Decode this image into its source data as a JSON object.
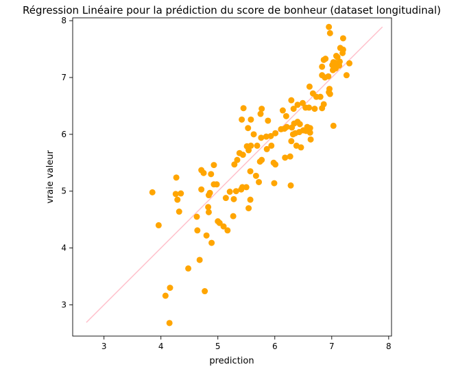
{
  "chart_data": {
    "type": "scatter",
    "title": "Régression Linéaire pour la prédiction du score de bonheur (dataset longitudinal)",
    "xlabel": "prediction",
    "ylabel": "vraie valeur",
    "xlim": [
      2.45,
      8.05
    ],
    "ylim": [
      2.45,
      8.05
    ],
    "xticks": [
      3,
      4,
      5,
      6,
      7,
      8
    ],
    "yticks": [
      3,
      4,
      5,
      6,
      7,
      8
    ],
    "xtick_labels": [
      "3",
      "4",
      "5",
      "6",
      "7",
      "8"
    ],
    "ytick_labels": [
      "3",
      "4",
      "5",
      "6",
      "7",
      "8"
    ],
    "grid": false,
    "legend": "none",
    "colors": {
      "points": "#ffa500",
      "reference_line": "#ffc0cb"
    },
    "reference_line": {
      "x": [
        2.69,
        7.89
      ],
      "y": [
        2.69,
        7.89
      ]
    },
    "points": [
      [
        4.15,
        2.68
      ],
      [
        4.08,
        3.16
      ],
      [
        4.16,
        3.3
      ],
      [
        4.77,
        3.24
      ],
      [
        4.48,
        3.64
      ],
      [
        4.68,
        3.79
      ],
      [
        3.96,
        4.4
      ],
      [
        4.64,
        4.31
      ],
      [
        4.8,
        4.22
      ],
      [
        4.89,
        4.09
      ],
      [
        4.63,
        4.55
      ],
      [
        4.32,
        4.64
      ],
      [
        4.84,
        4.63
      ],
      [
        4.83,
        4.72
      ],
      [
        5.0,
        4.47
      ],
      [
        5.03,
        4.44
      ],
      [
        5.1,
        4.38
      ],
      [
        5.17,
        4.31
      ],
      [
        5.27,
        4.56
      ],
      [
        5.54,
        4.7
      ],
      [
        5.57,
        4.85
      ],
      [
        3.85,
        4.98
      ],
      [
        4.26,
        4.95
      ],
      [
        4.35,
        4.96
      ],
      [
        4.29,
        4.85
      ],
      [
        4.84,
        4.93
      ],
      [
        4.86,
        4.97
      ],
      [
        4.71,
        5.03
      ],
      [
        5.14,
        4.88
      ],
      [
        5.28,
        4.86
      ],
      [
        5.21,
        4.99
      ],
      [
        5.32,
        5.0
      ],
      [
        5.41,
        5.03
      ],
      [
        5.5,
        5.07
      ],
      [
        5.43,
        5.07
      ],
      [
        4.98,
        5.12
      ],
      [
        4.93,
        5.12
      ],
      [
        4.88,
        5.3
      ],
      [
        4.71,
        5.37
      ],
      [
        4.75,
        5.32
      ],
      [
        4.93,
        5.46
      ],
      [
        4.27,
        5.24
      ],
      [
        5.29,
        5.47
      ],
      [
        5.34,
        5.55
      ],
      [
        5.38,
        5.67
      ],
      [
        5.44,
        5.64
      ],
      [
        5.51,
        5.79
      ],
      [
        5.57,
        5.35
      ],
      [
        5.67,
        5.27
      ],
      [
        5.72,
        5.16
      ],
      [
        5.77,
        5.55
      ],
      [
        5.74,
        5.52
      ],
      [
        5.86,
        5.74
      ],
      [
        5.94,
        5.8
      ],
      [
        5.99,
        5.14
      ],
      [
        6.01,
        5.47
      ],
      [
        5.98,
        5.5
      ],
      [
        6.18,
        5.59
      ],
      [
        6.27,
        5.61
      ],
      [
        6.28,
        5.1
      ],
      [
        6.38,
        5.8
      ],
      [
        6.46,
        5.77
      ],
      [
        5.54,
        5.72
      ],
      [
        5.58,
        5.8
      ],
      [
        5.63,
        6.0
      ],
      [
        5.69,
        5.8
      ],
      [
        5.76,
        5.94
      ],
      [
        5.85,
        5.96
      ],
      [
        5.93,
        5.97
      ],
      [
        6.01,
        6.02
      ],
      [
        6.11,
        6.09
      ],
      [
        6.17,
        6.1
      ],
      [
        6.21,
        6.13
      ],
      [
        6.29,
        5.88
      ],
      [
        6.32,
        6.0
      ],
      [
        6.36,
        6.02
      ],
      [
        6.43,
        6.04
      ],
      [
        6.5,
        6.07
      ],
      [
        6.55,
        6.06
      ],
      [
        6.63,
        5.91
      ],
      [
        6.62,
        6.03
      ],
      [
        6.3,
        6.12
      ],
      [
        6.34,
        6.19
      ],
      [
        6.4,
        6.22
      ],
      [
        6.44,
        6.18
      ],
      [
        6.57,
        6.13
      ],
      [
        6.62,
        6.11
      ],
      [
        5.53,
        6.11
      ],
      [
        5.42,
        6.26
      ],
      [
        5.58,
        6.26
      ],
      [
        5.75,
        6.36
      ],
      [
        5.88,
        6.24
      ],
      [
        5.45,
        6.46
      ],
      [
        5.77,
        6.45
      ],
      [
        6.14,
        6.42
      ],
      [
        6.2,
        6.32
      ],
      [
        6.29,
        6.6
      ],
      [
        6.33,
        6.45
      ],
      [
        6.4,
        6.52
      ],
      [
        6.49,
        6.55
      ],
      [
        6.54,
        6.47
      ],
      [
        6.6,
        6.47
      ],
      [
        6.61,
        6.84
      ],
      [
        6.67,
        6.72
      ],
      [
        6.73,
        6.66
      ],
      [
        6.8,
        6.66
      ],
      [
        6.83,
        6.46
      ],
      [
        6.86,
        6.53
      ],
      [
        6.95,
        6.74
      ],
      [
        6.97,
        6.71
      ],
      [
        6.96,
        6.8
      ],
      [
        7.03,
        6.15
      ],
      [
        6.83,
        7.04
      ],
      [
        6.88,
        7.0
      ],
      [
        6.94,
        7.02
      ],
      [
        7.02,
        7.13
      ],
      [
        7.07,
        7.16
      ],
      [
        7.13,
        7.21
      ],
      [
        7.26,
        7.04
      ],
      [
        6.83,
        7.19
      ],
      [
        6.89,
        7.33
      ],
      [
        6.86,
        7.31
      ],
      [
        7.01,
        7.22
      ],
      [
        7.03,
        7.27
      ],
      [
        7.08,
        7.38
      ],
      [
        7.06,
        7.26
      ],
      [
        7.14,
        7.28
      ],
      [
        7.19,
        7.43
      ],
      [
        7.15,
        7.52
      ],
      [
        7.2,
        7.49
      ],
      [
        7.31,
        7.25
      ],
      [
        7.2,
        7.69
      ],
      [
        6.95,
        7.89
      ],
      [
        6.97,
        7.78
      ],
      [
        7.1,
        7.36
      ],
      [
        6.7,
        6.45
      ]
    ]
  }
}
